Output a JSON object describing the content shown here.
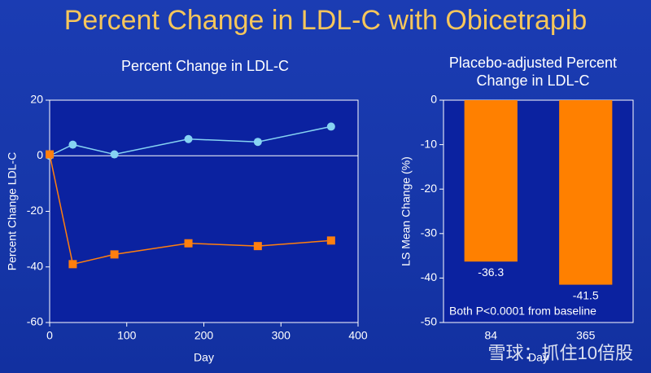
{
  "title": "Percent Change in LDL-C with Obicetrapib",
  "watermark": "雪球：抓住10倍股",
  "chart_data": [
    {
      "type": "line",
      "title": "Percent Change in LDL-C",
      "x_label": "Day",
      "y_label": "Percent Change LDL-C",
      "x": [
        0,
        30,
        84,
        180,
        270,
        365
      ],
      "series": [
        {
          "color": "#86d3f2",
          "marker": "circle",
          "values": [
            0,
            4,
            0.5,
            6,
            5,
            10.5
          ]
        },
        {
          "color": "#ff7f0e",
          "marker": "square",
          "values": [
            0.5,
            -39,
            -35.5,
            -31.5,
            -32.5,
            -30.5
          ]
        }
      ],
      "xlim": [
        0,
        400
      ],
      "xticks": [
        0,
        100,
        200,
        300,
        400
      ],
      "ylim": [
        -60,
        20
      ],
      "yticks": [
        -60,
        -40,
        -20,
        0,
        20
      ],
      "zero_line": true
    },
    {
      "type": "bar",
      "title": "Placebo-adjusted Percent Change in LDL-C",
      "x_label": "Day",
      "y_label": "LS Mean Change (%)",
      "categories": [
        "84",
        "365"
      ],
      "values": [
        -36.3,
        -41.5
      ],
      "color": "#ff8000",
      "annotation": "Both P<0.0001 from baseline",
      "ylim": [
        -50,
        0
      ],
      "yticks": [
        -50,
        -40,
        -30,
        -20,
        -10,
        0
      ]
    }
  ]
}
